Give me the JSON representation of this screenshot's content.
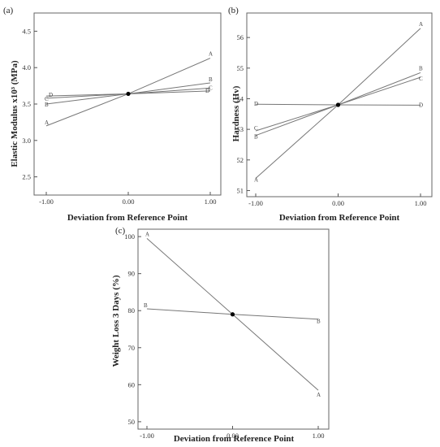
{
  "chart_data": [
    {
      "type": "line",
      "panel_label": "(a)",
      "xlabel": "Deviation from Reference Point",
      "ylabel": "Elastic Modulus x10³ (MPa)",
      "xlim": [
        -1.0,
        1.0
      ],
      "ylim": [
        2.25,
        4.75
      ],
      "x_ticks": [
        "-1.00",
        "0.00",
        "1.00"
      ],
      "y_ticks": [
        "2.5",
        "3.0",
        "3.5",
        "4.0",
        "4.5"
      ],
      "y_tick_values": [
        2.5,
        3.0,
        3.5,
        4.0,
        4.5
      ],
      "center_point": [
        0,
        3.64
      ],
      "series": [
        {
          "name": "A",
          "x": [
            -1,
            0,
            1
          ],
          "values": [
            3.2,
            3.64,
            4.13
          ]
        },
        {
          "name": "B",
          "x": [
            -1,
            0,
            1
          ],
          "values": [
            3.5,
            3.64,
            3.79
          ]
        },
        {
          "name": "C",
          "x": [
            -1,
            0,
            1
          ],
          "values": [
            3.58,
            3.64,
            3.72
          ]
        },
        {
          "name": "D",
          "x": [
            -1,
            0,
            1
          ],
          "values": [
            3.61,
            3.64,
            3.68
          ]
        }
      ]
    },
    {
      "type": "line",
      "panel_label": "(b)",
      "xlabel": "Deviation from Reference Point",
      "ylabel": "Hardness (Hv)",
      "xlim": [
        -1.0,
        1.0
      ],
      "ylim": [
        50.8,
        56.8
      ],
      "x_ticks": [
        "-1.00",
        "0.00",
        "1.00"
      ],
      "y_ticks": [
        "51",
        "52",
        "53",
        "54",
        "55",
        "56"
      ],
      "y_tick_values": [
        51,
        52,
        53,
        54,
        55,
        56
      ],
      "center_point": [
        0,
        53.8
      ],
      "series": [
        {
          "name": "A",
          "x": [
            -1,
            0,
            1
          ],
          "values": [
            51.4,
            53.8,
            56.3
          ]
        },
        {
          "name": "B",
          "x": [
            -1,
            0,
            1
          ],
          "values": [
            52.8,
            53.8,
            54.85
          ]
        },
        {
          "name": "C",
          "x": [
            -1,
            0,
            1
          ],
          "values": [
            52.95,
            53.8,
            54.7
          ]
        },
        {
          "name": "D",
          "x": [
            -1,
            0,
            1
          ],
          "values": [
            53.82,
            53.8,
            53.79
          ]
        }
      ]
    },
    {
      "type": "line",
      "panel_label": "(c)",
      "xlabel": "Deviation from Reference Point",
      "ylabel": "Weight Loss 3 Days (%)",
      "xlim": [
        -1.0,
        1.0
      ],
      "ylim": [
        48,
        102
      ],
      "x_ticks": [
        "-1.00",
        "0.00",
        "1.00"
      ],
      "y_ticks": [
        "50",
        "60",
        "70",
        "80",
        "90",
        "100"
      ],
      "y_tick_values": [
        50,
        60,
        70,
        80,
        90,
        100
      ],
      "center_point": [
        0,
        79
      ],
      "series": [
        {
          "name": "A",
          "x": [
            -1,
            0,
            1
          ],
          "values": [
            99.5,
            79,
            58.5
          ]
        },
        {
          "name": "B",
          "x": [
            -1,
            0,
            1
          ],
          "values": [
            80.5,
            79,
            77.7
          ]
        }
      ]
    }
  ]
}
